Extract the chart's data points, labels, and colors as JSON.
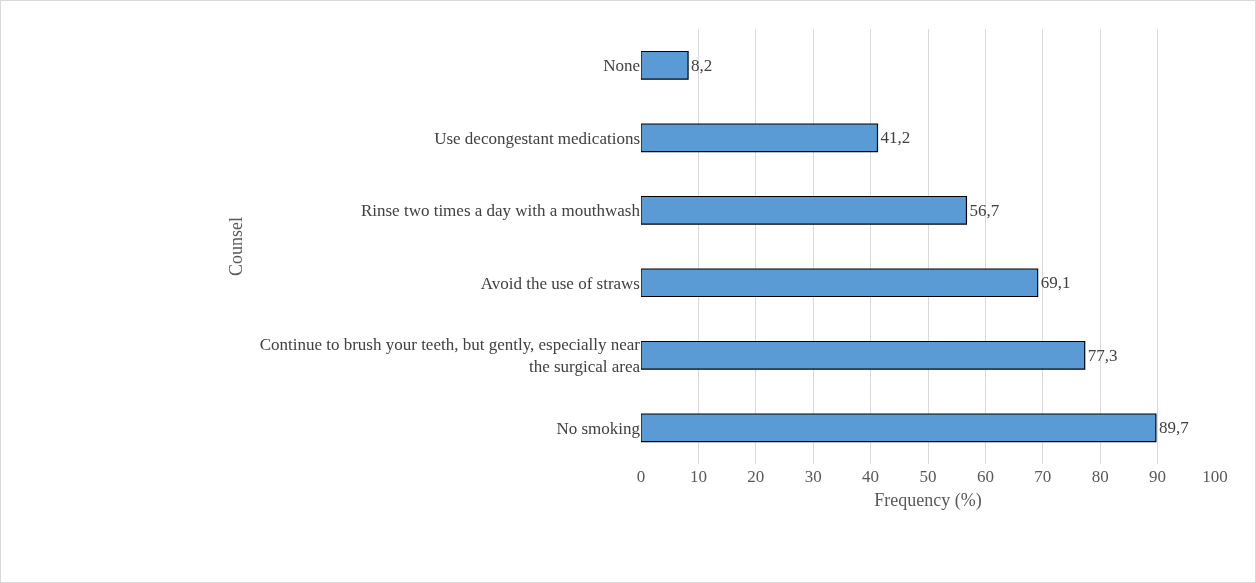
{
  "chart_data": {
    "type": "bar",
    "orientation": "horizontal",
    "categories": [
      "None",
      "Use decongestant medications",
      "Rinse two times a day with a mouthwash",
      "Avoid the use of straws",
      "Continue to brush your teeth, but gently, especially near the surgical area",
      "No smoking"
    ],
    "values": [
      8.2,
      41.2,
      56.7,
      69.1,
      77.3,
      89.7
    ],
    "value_labels": [
      "8,2",
      "41,2",
      "56,7",
      "69,1",
      "77,3",
      "89,7"
    ],
    "color": "#5b9bd5",
    "xlim": [
      0,
      100
    ],
    "xticks": [
      0,
      10,
      20,
      30,
      40,
      50,
      60,
      70,
      80,
      90,
      100
    ],
    "grid": "x",
    "xlabel": "Frequency (%)",
    "ylabel": "Counsel",
    "legend": false
  }
}
